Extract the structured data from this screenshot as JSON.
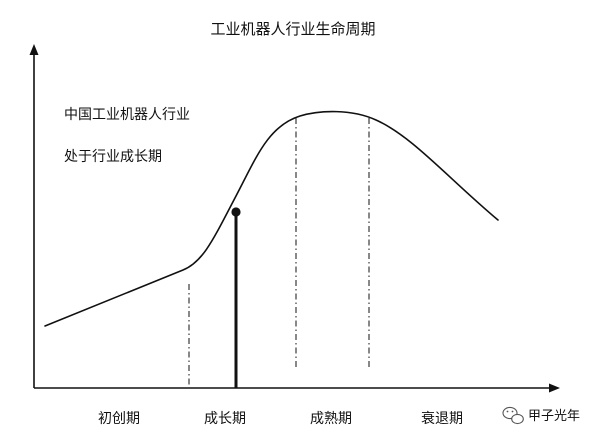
{
  "title": "工业机器人行业生命周期",
  "annotation": {
    "line1": "中国工业机器人行业",
    "line2": "处于行业成长期"
  },
  "stages": [
    "初创期",
    "成长期",
    "成熟期",
    "衰退期"
  ],
  "watermark": {
    "text": "甲子光年",
    "icon": "wechat-icon"
  },
  "current_stage_marker": {
    "stage": "成长期"
  },
  "colors": {
    "line": "#111111",
    "background": "#ffffff"
  }
}
